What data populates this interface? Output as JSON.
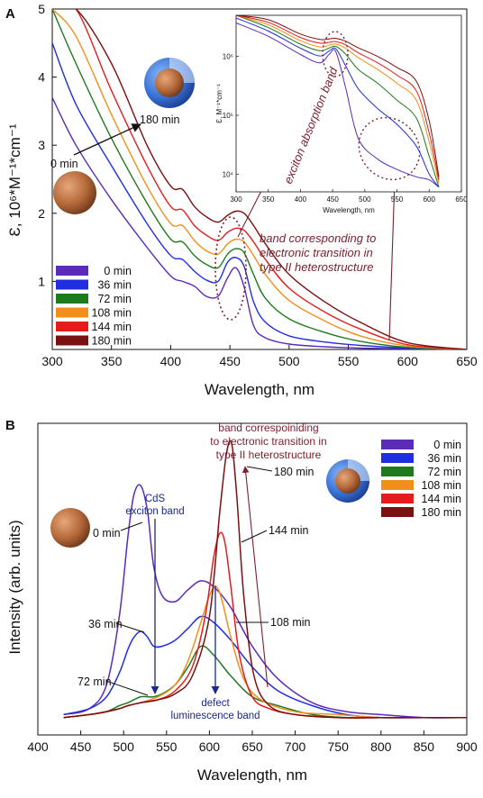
{
  "panel_a": {
    "label": "A",
    "ylabel": "Ɛ, 10⁶*M⁻¹*cm⁻¹",
    "xlabel": "Wavelength, nm",
    "annotation_start": "0 min",
    "annotation_end": "180 min",
    "band_label_lines": [
      "band corresponding to",
      "electronic transition in",
      "type II heterostructure"
    ],
    "inset": {
      "ylabel": "Ɛ, M⁻¹*cm⁻¹",
      "xlabel": "Wavelength, nm",
      "exciton_label": "exciton absorption band"
    }
  },
  "panel_b": {
    "label": "B",
    "ylabel": "Intensity (arb. units)",
    "xlabel": "Wavelength, nm",
    "cds_label_lines": [
      "CdS",
      "exciton band"
    ],
    "defect_label_lines": [
      "defect",
      "luminescence band"
    ],
    "band_label_lines": [
      "band correspoiniding",
      "to electronic transition in",
      "type II heterostructure"
    ],
    "curve_labels": [
      "0 min",
      "36 min",
      "72 min",
      "108 min",
      "144 min",
      "180 min"
    ]
  },
  "legend_labels": [
    "0 min",
    "36 min",
    "72 min",
    "108 min",
    "144 min",
    "180 min"
  ],
  "series_colors": [
    "#5a2ab8",
    "#1f2fe0",
    "#1d7a1d",
    "#f0901a",
    "#e51c1c",
    "#7a1010"
  ],
  "chart_data": [
    {
      "type": "line",
      "panel": "A",
      "title": "",
      "xlabel": "Wavelength, nm",
      "ylabel": "Ɛ, 10⁶*M⁻¹*cm⁻¹",
      "xlim": [
        300,
        650
      ],
      "ylim": [
        0,
        5
      ],
      "xticks": [
        300,
        350,
        400,
        450,
        500,
        550,
        600,
        650
      ],
      "yticks": [
        1,
        2,
        3,
        4,
        5
      ],
      "legend_position": "bottom-left",
      "series": [
        {
          "name": "0 min",
          "x": [
            300,
            320,
            350,
            380,
            400,
            410,
            420,
            430,
            440,
            448,
            455,
            462,
            470,
            480,
            500,
            530,
            560,
            600,
            650
          ],
          "values": [
            3.7,
            3.0,
            2.2,
            1.5,
            1.08,
            1.0,
            0.93,
            0.78,
            0.78,
            1.05,
            1.2,
            0.92,
            0.35,
            0.17,
            0.08,
            0.04,
            0.02,
            0.01,
            0.0
          ]
        },
        {
          "name": "36 min",
          "x": [
            300,
            320,
            350,
            380,
            400,
            410,
            420,
            430,
            440,
            448,
            455,
            462,
            470,
            480,
            500,
            530,
            560,
            600,
            650
          ],
          "values": [
            4.5,
            3.6,
            2.7,
            1.85,
            1.38,
            1.32,
            1.15,
            1.02,
            1.0,
            1.28,
            1.35,
            1.22,
            0.7,
            0.4,
            0.2,
            0.11,
            0.06,
            0.02,
            0.0
          ]
        },
        {
          "name": "72 min",
          "x": [
            300,
            320,
            350,
            380,
            400,
            410,
            420,
            430,
            440,
            448,
            455,
            462,
            470,
            480,
            500,
            530,
            560,
            600,
            650
          ],
          "values": [
            5.0,
            4.2,
            3.1,
            2.15,
            1.62,
            1.58,
            1.38,
            1.25,
            1.2,
            1.4,
            1.48,
            1.42,
            1.1,
            0.75,
            0.45,
            0.25,
            0.12,
            0.03,
            0.0
          ]
        },
        {
          "name": "108 min",
          "x": [
            300,
            320,
            350,
            380,
            400,
            410,
            420,
            430,
            440,
            448,
            455,
            462,
            470,
            480,
            500,
            530,
            560,
            600,
            650
          ],
          "values": [
            5.0,
            4.6,
            3.45,
            2.4,
            1.85,
            1.82,
            1.6,
            1.45,
            1.4,
            1.55,
            1.62,
            1.58,
            1.38,
            1.1,
            0.72,
            0.42,
            0.2,
            0.05,
            0.0
          ]
        },
        {
          "name": "144 min",
          "x": [
            300,
            320,
            350,
            380,
            400,
            410,
            420,
            430,
            440,
            448,
            455,
            462,
            470,
            480,
            500,
            530,
            560,
            600,
            650
          ],
          "values": [
            5.0,
            5.0,
            3.8,
            2.7,
            2.1,
            2.05,
            1.82,
            1.68,
            1.6,
            1.72,
            1.78,
            1.75,
            1.58,
            1.32,
            0.9,
            0.55,
            0.3,
            0.07,
            0.0
          ]
        },
        {
          "name": "180 min",
          "x": [
            300,
            320,
            350,
            380,
            400,
            410,
            420,
            430,
            440,
            448,
            455,
            462,
            470,
            480,
            500,
            530,
            560,
            600,
            650
          ],
          "values": [
            5.0,
            5.0,
            4.2,
            3.0,
            2.4,
            2.35,
            2.1,
            1.95,
            1.87,
            1.97,
            2.03,
            2.0,
            1.82,
            1.55,
            1.1,
            0.7,
            0.4,
            0.1,
            0.0
          ]
        }
      ],
      "inset": {
        "type": "line",
        "xlabel": "Wavelength, nm",
        "ylabel": "Ɛ, M⁻¹*cm⁻¹",
        "scale_y": "log",
        "xlim": [
          300,
          650
        ],
        "ylim": [
          5000,
          5000000
        ],
        "xticks": [
          300,
          350,
          400,
          450,
          500,
          550,
          600,
          650
        ],
        "yticks": [
          10000,
          100000,
          1000000
        ],
        "yticklabels": [
          "10⁴",
          "10⁵",
          "10⁶"
        ],
        "series": [
          {
            "name": "0 min",
            "x": [
              300,
              350,
              400,
              430,
              445,
              455,
              470,
              490,
              520,
              550,
              580,
              600,
              615
            ],
            "values": [
              3700000,
              2200000,
              1080000,
              780000,
              1100000,
              1200000,
              300000,
              40000,
              18000,
              12000,
              9000,
              8000,
              6000
            ]
          },
          {
            "name": "36 min",
            "x": [
              300,
              350,
              400,
              430,
              445,
              455,
              470,
              490,
              520,
              550,
              580,
              600,
              615
            ],
            "values": [
              4500000,
              2700000,
              1380000,
              1020000,
              1250000,
              1350000,
              700000,
              280000,
              130000,
              70000,
              30000,
              10000,
              6000
            ]
          },
          {
            "name": "72 min",
            "x": [
              300,
              350,
              400,
              430,
              445,
              455,
              470,
              490,
              520,
              550,
              580,
              600,
              615
            ],
            "values": [
              5000000,
              3100000,
              1620000,
              1250000,
              1400000,
              1480000,
              1100000,
              600000,
              350000,
              180000,
              90000,
              20000,
              6000
            ]
          },
          {
            "name": "108 min",
            "x": [
              300,
              350,
              400,
              430,
              445,
              455,
              470,
              490,
              520,
              550,
              580,
              600,
              615
            ],
            "values": [
              5000000,
              3450000,
              1850000,
              1450000,
              1560000,
              1620000,
              1380000,
              950000,
              600000,
              350000,
              180000,
              35000,
              7000
            ]
          },
          {
            "name": "144 min",
            "x": [
              300,
              350,
              400,
              430,
              445,
              455,
              470,
              490,
              520,
              550,
              580,
              600,
              615
            ],
            "values": [
              5000000,
              3800000,
              2100000,
              1680000,
              1740000,
              1780000,
              1580000,
              1150000,
              780000,
              480000,
              260000,
              50000,
              8000
            ]
          },
          {
            "name": "180 min",
            "x": [
              300,
              350,
              400,
              430,
              445,
              455,
              470,
              490,
              520,
              550,
              580,
              600,
              615
            ],
            "values": [
              5000000,
              4200000,
              2400000,
              1950000,
              1990000,
              2030000,
              1820000,
              1400000,
              1000000,
              650000,
              380000,
              80000,
              9000
            ]
          }
        ]
      }
    },
    {
      "type": "line",
      "panel": "B",
      "title": "",
      "xlabel": "Wavelength, nm",
      "ylabel": "Intensity (arb. units)",
      "xlim": [
        400,
        900
      ],
      "xticks": [
        400,
        450,
        500,
        550,
        600,
        650,
        700,
        750,
        800,
        850,
        900
      ],
      "ylim": [
        0,
        1
      ],
      "legend_position": "top-right",
      "series": [
        {
          "name": "0 min",
          "x": [
            430,
            460,
            480,
            495,
            505,
            512,
            520,
            528,
            535,
            545,
            560,
            575,
            590,
            605,
            625,
            650,
            680,
            720,
            760,
            800,
            850,
            900
          ],
          "values": [
            0.02,
            0.04,
            0.12,
            0.35,
            0.62,
            0.76,
            0.79,
            0.7,
            0.52,
            0.42,
            0.4,
            0.44,
            0.47,
            0.45,
            0.38,
            0.25,
            0.14,
            0.06,
            0.03,
            0.02,
            0.01,
            0.01
          ]
        },
        {
          "name": "36 min",
          "x": [
            430,
            460,
            480,
            495,
            505,
            512,
            520,
            528,
            535,
            545,
            560,
            575,
            590,
            605,
            625,
            650,
            680,
            720,
            760,
            800,
            850,
            900
          ],
          "values": [
            0.02,
            0.04,
            0.08,
            0.16,
            0.24,
            0.28,
            0.3,
            0.28,
            0.25,
            0.25,
            0.27,
            0.31,
            0.35,
            0.33,
            0.27,
            0.18,
            0.1,
            0.05,
            0.02,
            0.01,
            0.01,
            0.01
          ]
        },
        {
          "name": "72 min",
          "x": [
            430,
            460,
            480,
            495,
            505,
            512,
            520,
            528,
            535,
            545,
            560,
            575,
            590,
            605,
            625,
            650,
            680,
            720,
            760,
            800,
            850,
            900
          ],
          "values": [
            0.01,
            0.02,
            0.03,
            0.05,
            0.06,
            0.07,
            0.08,
            0.08,
            0.08,
            0.09,
            0.12,
            0.18,
            0.25,
            0.22,
            0.15,
            0.08,
            0.05,
            0.02,
            0.01,
            0.01,
            0.01,
            0.01
          ]
        },
        {
          "name": "108 min",
          "x": [
            430,
            460,
            480,
            495,
            505,
            520,
            540,
            560,
            575,
            590,
            600,
            608,
            615,
            625,
            640,
            660,
            700,
            750,
            800,
            850,
            900
          ],
          "values": [
            0.01,
            0.02,
            0.03,
            0.04,
            0.05,
            0.06,
            0.08,
            0.12,
            0.2,
            0.33,
            0.42,
            0.45,
            0.4,
            0.28,
            0.14,
            0.07,
            0.03,
            0.02,
            0.01,
            0.01,
            0.01
          ]
        },
        {
          "name": "144 min",
          "x": [
            430,
            460,
            480,
            495,
            505,
            520,
            540,
            560,
            580,
            595,
            605,
            612,
            618,
            625,
            635,
            650,
            670,
            700,
            750,
            800,
            850,
            900
          ],
          "values": [
            0.01,
            0.02,
            0.03,
            0.04,
            0.05,
            0.06,
            0.07,
            0.1,
            0.18,
            0.35,
            0.55,
            0.63,
            0.6,
            0.45,
            0.22,
            0.08,
            0.04,
            0.02,
            0.01,
            0.01,
            0.01,
            0.01
          ]
        },
        {
          "name": "180 min",
          "x": [
            430,
            460,
            480,
            495,
            505,
            520,
            540,
            560,
            580,
            600,
            612,
            620,
            626,
            632,
            640,
            652,
            670,
            700,
            750,
            800,
            850,
            900
          ],
          "values": [
            0.01,
            0.02,
            0.03,
            0.04,
            0.05,
            0.06,
            0.07,
            0.09,
            0.15,
            0.35,
            0.7,
            0.9,
            0.93,
            0.75,
            0.42,
            0.15,
            0.05,
            0.02,
            0.01,
            0.01,
            0.01,
            0.01
          ]
        }
      ]
    }
  ]
}
